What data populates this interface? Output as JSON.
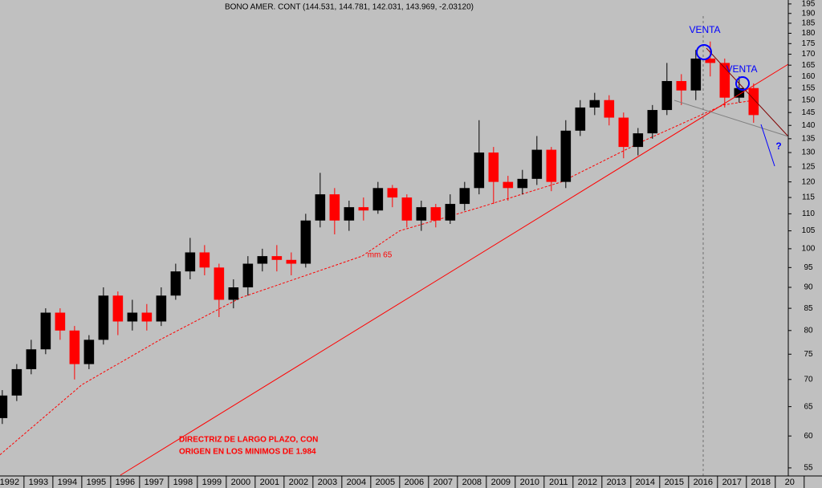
{
  "chart_data": {
    "type": "candlestick",
    "title": "BONO AMER. CONT (144.531, 144.781, 142.031, 143.969, -2.03120)",
    "log_scale": true,
    "up_color": "#000000",
    "down_color": "#ff0000",
    "x": [
      1991.75,
      1992.25,
      1992.75,
      1993.25,
      1993.75,
      1994.25,
      1994.75,
      1995.25,
      1995.75,
      1996.25,
      1996.75,
      1997.25,
      1997.75,
      1998.25,
      1998.75,
      1999.25,
      1999.75,
      2000.25,
      2000.75,
      2001.25,
      2001.75,
      2002.25,
      2002.75,
      2003.25,
      2003.75,
      2004.25,
      2004.75,
      2005.25,
      2005.75,
      2006.25,
      2006.75,
      2007.25,
      2007.75,
      2008.25,
      2008.75,
      2009.25,
      2009.75,
      2010.25,
      2010.75,
      2011.25,
      2011.75,
      2012.25,
      2012.75,
      2013.25,
      2013.75,
      2014.25,
      2014.75,
      2015.25,
      2015.75,
      2016.25,
      2016.75,
      2017.25,
      2017.75
    ],
    "open": [
      63,
      67,
      72,
      76,
      84,
      80,
      73,
      78,
      88,
      82,
      84,
      82,
      88,
      94,
      99,
      95,
      87,
      90,
      96,
      98,
      97,
      96,
      108,
      116,
      108,
      112,
      111,
      118,
      115,
      108,
      112,
      108,
      113,
      118,
      130,
      120,
      118,
      121,
      131,
      120,
      138,
      147,
      150,
      143,
      132,
      137,
      146,
      158,
      154,
      168,
      166,
      151,
      155
    ],
    "high": [
      68,
      73,
      78,
      85,
      85,
      81,
      79,
      90,
      89,
      87,
      86,
      90,
      96,
      103,
      101,
      96,
      92,
      98,
      100,
      101,
      99,
      110,
      123,
      118,
      114,
      115,
      120,
      119,
      116,
      114,
      113,
      116,
      120,
      142,
      132,
      122,
      124,
      136,
      132,
      142,
      150,
      153,
      152,
      145,
      139,
      148,
      166,
      161,
      172,
      176,
      168,
      160,
      157
    ],
    "low": [
      62,
      66,
      71,
      75,
      78,
      70,
      72,
      77,
      79,
      80,
      80,
      81,
      87,
      92,
      93,
      83,
      85,
      88,
      94,
      94,
      93,
      95,
      106,
      104,
      105,
      108,
      110,
      112,
      106,
      105,
      106,
      107,
      111,
      116,
      113,
      114,
      116,
      119,
      117,
      118,
      136,
      144,
      140,
      128,
      129,
      135,
      144,
      148,
      150,
      160,
      147,
      149,
      141
    ],
    "close": [
      67,
      72,
      76,
      84,
      80,
      73,
      78,
      88,
      82,
      84,
      82,
      88,
      94,
      99,
      95,
      87,
      90,
      96,
      98,
      97,
      96,
      108,
      116,
      108,
      112,
      111,
      118,
      115,
      108,
      112,
      108,
      113,
      118,
      130,
      120,
      118,
      121,
      131,
      120,
      138,
      147,
      150,
      143,
      132,
      137,
      146,
      158,
      154,
      168,
      166,
      151,
      155,
      144
    ],
    "ma": {
      "name": "mm 65",
      "color": "#ff0000",
      "x": [
        1991.67,
        1994.5,
        1997.2,
        2000.0,
        2004.2,
        2005.5,
        2008.3,
        2011.1,
        2013.9,
        2016.7,
        2017.8
      ],
      "values": [
        57,
        69,
        78,
        87.5,
        98,
        105,
        112,
        120,
        134,
        148,
        150
      ]
    },
    "xlim": [
      1991.67,
      2018.95
    ],
    "xticks": [
      1992,
      1993,
      1994,
      1995,
      1996,
      1997,
      1998,
      1999,
      2000,
      2001,
      2002,
      2003,
      2004,
      2005,
      2006,
      2007,
      2008,
      2009,
      2010,
      2011,
      2012,
      2013,
      2014,
      2015,
      2016,
      2017,
      2018,
      {
        "value": 2019,
        "label": "20"
      }
    ],
    "ylim": [
      53.8,
      197.1
    ],
    "yticks": [
      55,
      60,
      65,
      70,
      75,
      80,
      85,
      90,
      95,
      100,
      105,
      110,
      115,
      120,
      125,
      130,
      135,
      140,
      145,
      150,
      155,
      160,
      165,
      170,
      175,
      180,
      185,
      190,
      195
    ],
    "annotations": {
      "sell_1": "VENTA",
      "sell_2": "VENTA",
      "question": "?",
      "note_line_1": "DIRECTRIZ DE LARGO PLAZO, CON",
      "note_line_2": "ORIGEN EN LOS MINIMOS DE 1.984"
    }
  }
}
